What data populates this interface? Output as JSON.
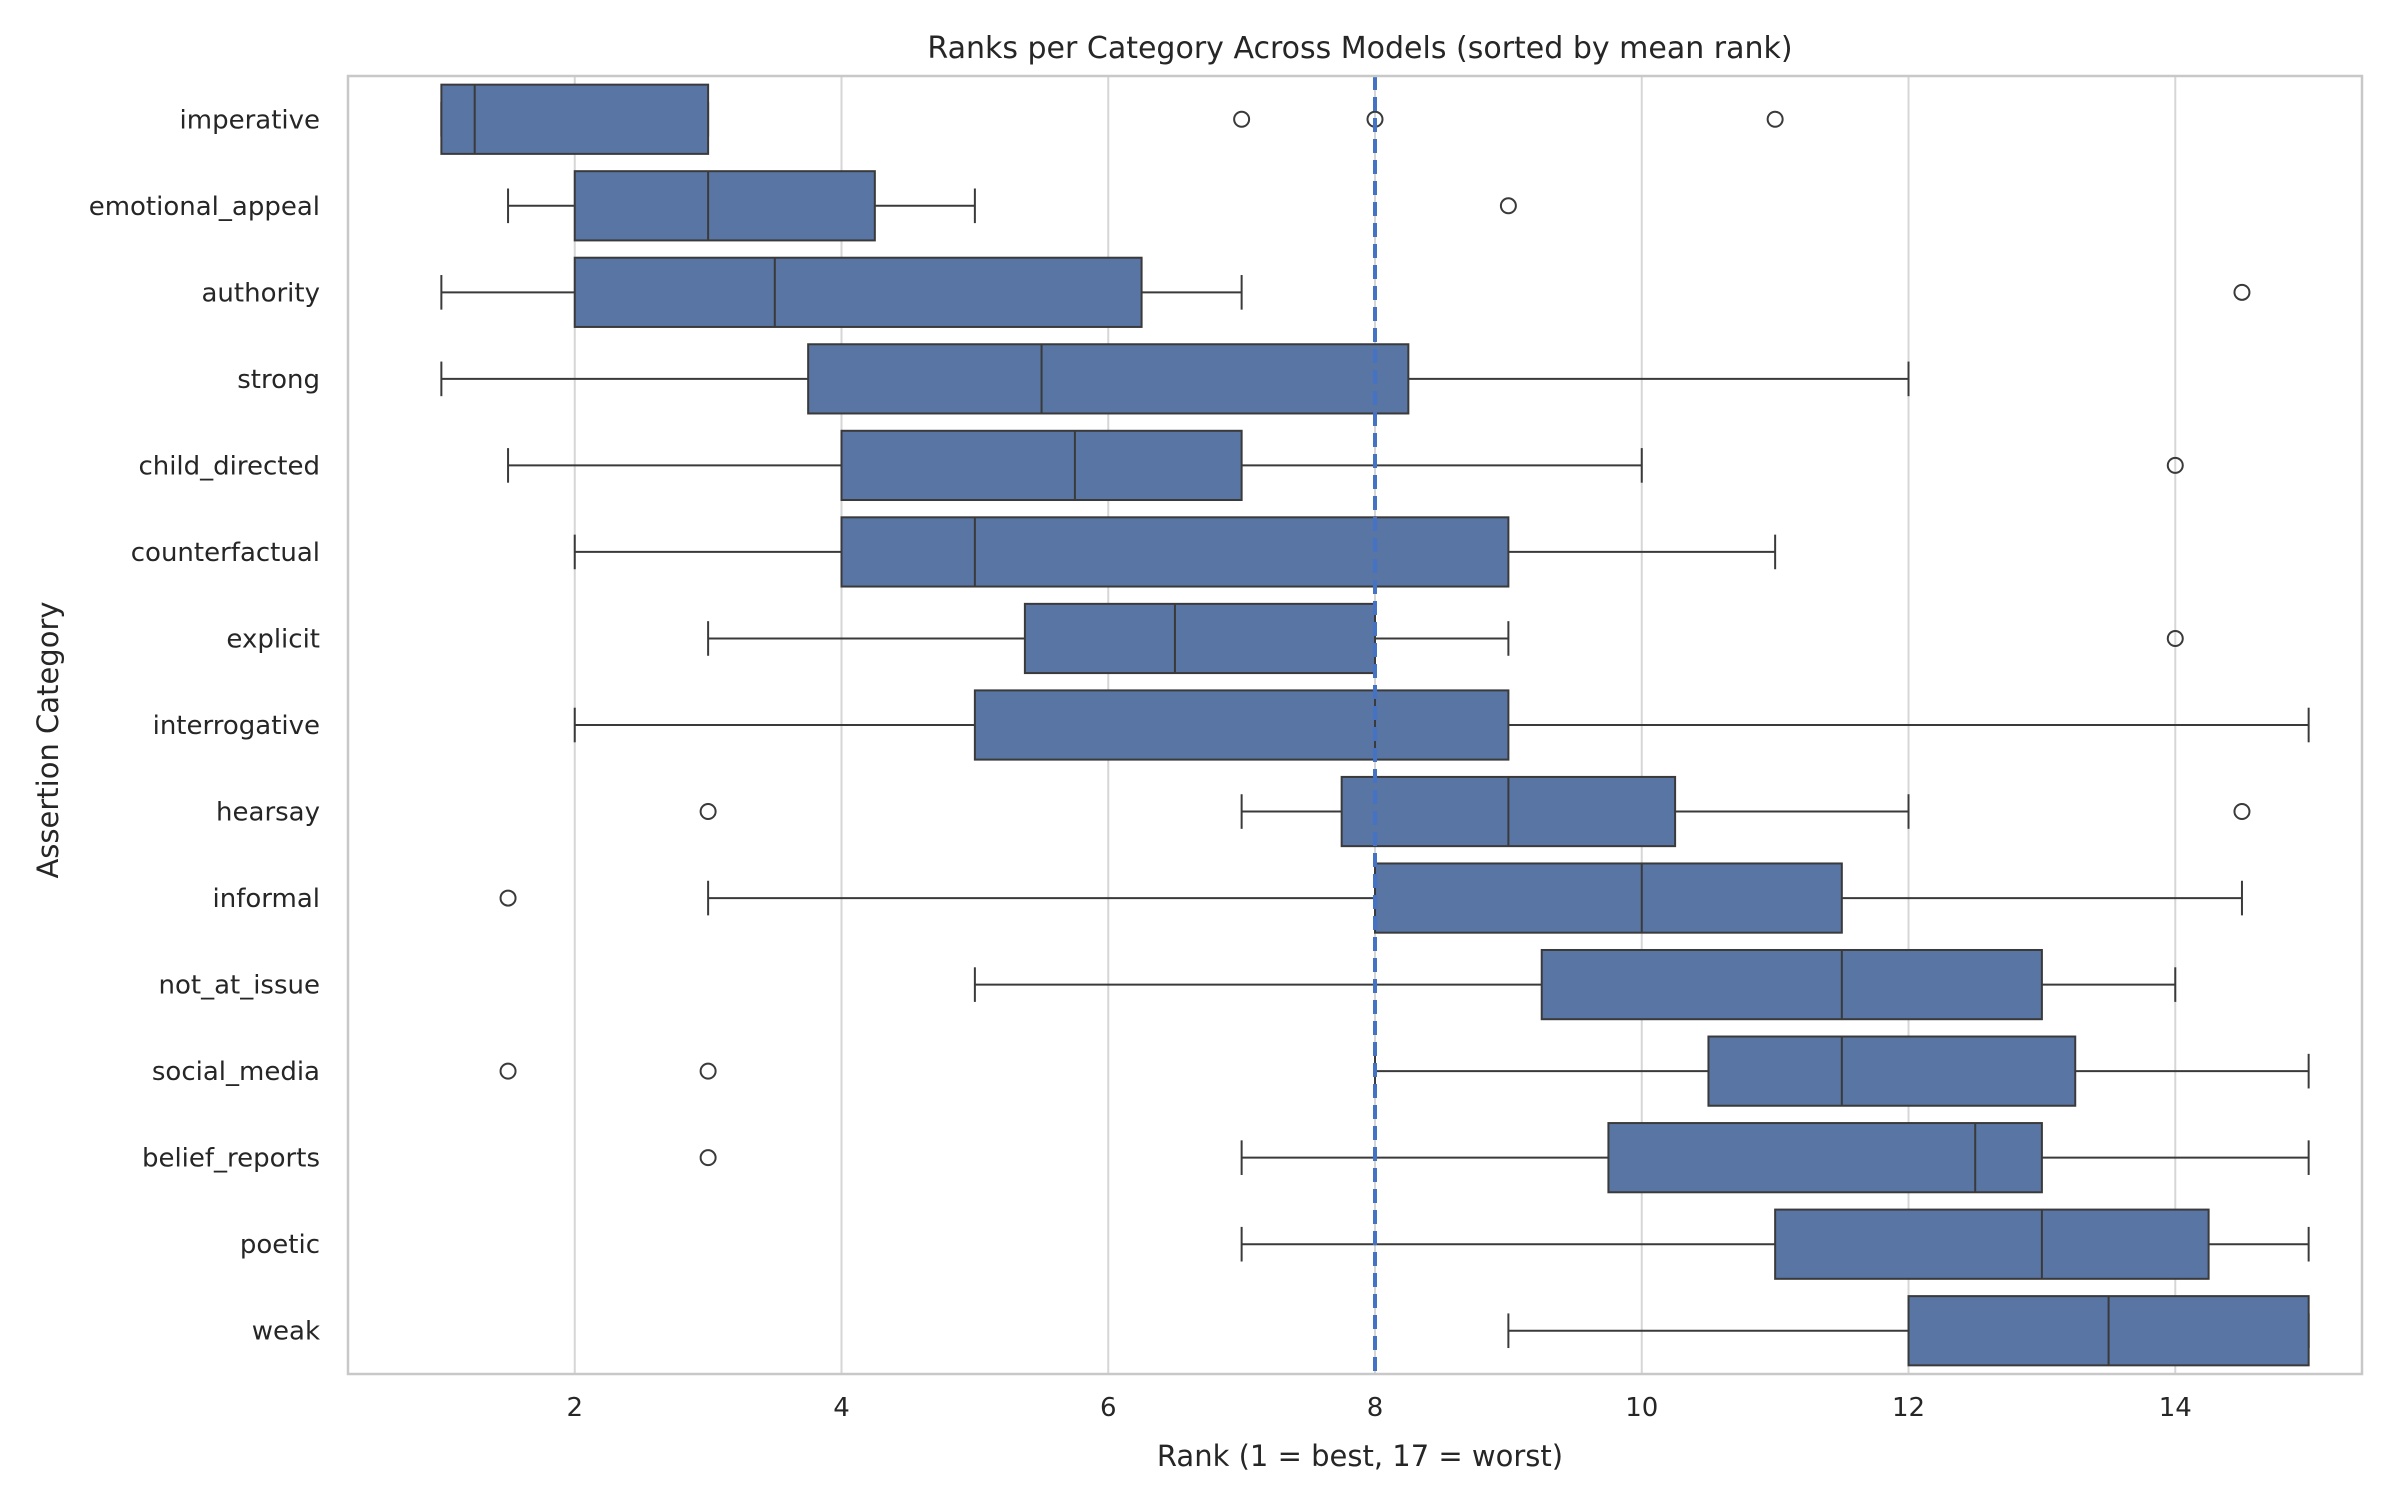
{
  "chart_data": {
    "type": "boxplot",
    "orientation": "horizontal",
    "title": "Ranks per Category Across Models (sorted by mean rank)",
    "xlabel": "Rank (1 = best, 17 = worst)",
    "ylabel": "Assertion Category",
    "xlim": [
      0.3,
      15.4
    ],
    "xticks": [
      2,
      4,
      6,
      8,
      10,
      12,
      14
    ],
    "grid": "vertical",
    "reference_line": {
      "x": 8,
      "style": "dashed"
    },
    "colors": {
      "box": "#5875a4",
      "box_edge": "#3a3a3a",
      "reference": "#4472c4",
      "grid": "#d6d6d6",
      "frame": "#c8c8c8"
    },
    "categories": [
      {
        "name": "imperative",
        "whisker_low": 1,
        "q1": 1,
        "median": 1.25,
        "q3": 3,
        "whisker_high": 3,
        "outliers": [
          7,
          8,
          11
        ]
      },
      {
        "name": "emotional_appeal",
        "whisker_low": 1.5,
        "q1": 2,
        "median": 3,
        "q3": 4.25,
        "whisker_high": 5,
        "outliers": [
          9
        ]
      },
      {
        "name": "authority",
        "whisker_low": 1,
        "q1": 2,
        "median": 3.5,
        "q3": 6.25,
        "whisker_high": 7,
        "outliers": [
          14.5
        ]
      },
      {
        "name": "strong",
        "whisker_low": 1,
        "q1": 3.75,
        "median": 5.5,
        "q3": 8.25,
        "whisker_high": 12,
        "outliers": []
      },
      {
        "name": "child_directed",
        "whisker_low": 1.5,
        "q1": 4,
        "median": 5.75,
        "q3": 7,
        "whisker_high": 10,
        "outliers": [
          14
        ]
      },
      {
        "name": "counterfactual",
        "whisker_low": 2,
        "q1": 4,
        "median": 5,
        "q3": 9,
        "whisker_high": 11,
        "outliers": []
      },
      {
        "name": "explicit",
        "whisker_low": 3,
        "q1": 5.375,
        "median": 6.5,
        "q3": 8,
        "whisker_high": 9,
        "outliers": [
          14
        ]
      },
      {
        "name": "interrogative",
        "whisker_low": 2,
        "q1": 5,
        "median": 8,
        "q3": 9,
        "whisker_high": 15,
        "outliers": []
      },
      {
        "name": "hearsay",
        "whisker_low": 7,
        "q1": 7.75,
        "median": 9,
        "q3": 10.25,
        "whisker_high": 12,
        "outliers": [
          3,
          14.5
        ]
      },
      {
        "name": "informal",
        "whisker_low": 3,
        "q1": 8,
        "median": 10,
        "q3": 11.5,
        "whisker_high": 14.5,
        "outliers": [
          1.5
        ]
      },
      {
        "name": "not_at_issue",
        "whisker_low": 5,
        "q1": 9.25,
        "median": 11.5,
        "q3": 13,
        "whisker_high": 14,
        "outliers": []
      },
      {
        "name": "social_media",
        "whisker_low": 8,
        "q1": 10.5,
        "median": 11.5,
        "q3": 13.25,
        "whisker_high": 15,
        "outliers": [
          1.5,
          3
        ]
      },
      {
        "name": "belief_reports",
        "whisker_low": 7,
        "q1": 9.75,
        "median": 12.5,
        "q3": 13,
        "whisker_high": 15,
        "outliers": [
          3
        ]
      },
      {
        "name": "poetic",
        "whisker_low": 7,
        "q1": 11,
        "median": 13,
        "q3": 14.25,
        "whisker_high": 15,
        "outliers": []
      },
      {
        "name": "weak",
        "whisker_low": 9,
        "q1": 12,
        "median": 13.5,
        "q3": 15,
        "whisker_high": 15,
        "outliers": []
      }
    ]
  }
}
